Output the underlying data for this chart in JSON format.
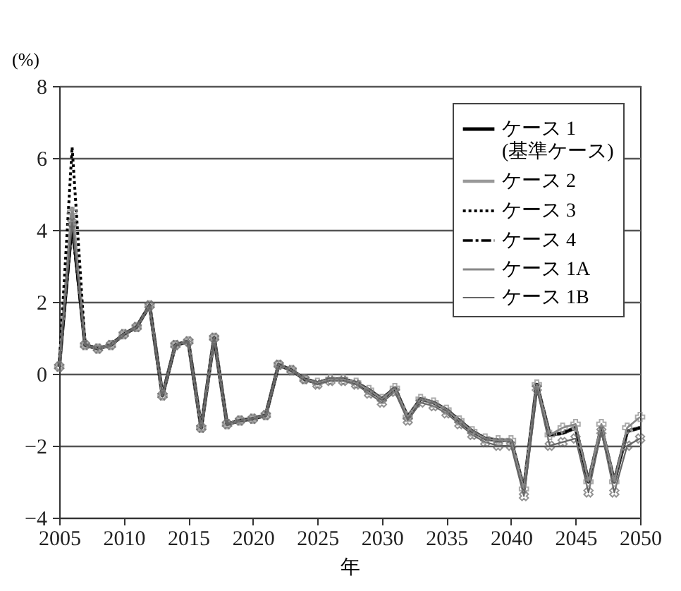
{
  "chart_data": {
    "type": "line",
    "xlabel": "年",
    "ylabel": "(%)",
    "x": [
      2005,
      2006,
      2007,
      2008,
      2009,
      2010,
      2011,
      2012,
      2013,
      2014,
      2015,
      2016,
      2017,
      2018,
      2019,
      2020,
      2021,
      2022,
      2023,
      2024,
      2025,
      2026,
      2027,
      2028,
      2029,
      2030,
      2031,
      2032,
      2033,
      2034,
      2035,
      2036,
      2037,
      2038,
      2039,
      2040,
      2041,
      2042,
      2043,
      2044,
      2045,
      2046,
      2047,
      2048,
      2049,
      2050
    ],
    "xlim": [
      2005,
      2050
    ],
    "xticks": [
      2005,
      2010,
      2015,
      2020,
      2025,
      2030,
      2035,
      2040,
      2045,
      2050
    ],
    "ylim": [
      -4,
      8
    ],
    "yticks": [
      -4,
      -2,
      0,
      2,
      4,
      6,
      8
    ],
    "grid": "y",
    "legend": "top right",
    "series": [
      {
        "name": "ケース 1\n(基準ケース)",
        "color": "#000000",
        "line_style": "solid",
        "values": [
          0.2,
          4.3,
          0.8,
          0.7,
          0.8,
          1.1,
          1.3,
          1.9,
          -0.6,
          0.8,
          0.9,
          -1.5,
          1.0,
          -1.4,
          -1.3,
          -1.25,
          -1.15,
          0.25,
          0.1,
          -0.15,
          -0.25,
          -0.15,
          -0.15,
          -0.25,
          -0.45,
          -0.7,
          -0.4,
          -1.2,
          -0.7,
          -0.8,
          -1.0,
          -1.3,
          -1.6,
          -1.8,
          -1.85,
          -1.85,
          -3.2,
          -0.3,
          -1.7,
          -1.65,
          -1.5,
          -3.0,
          -1.5,
          -3.0,
          -1.6,
          -1.5
        ]
      },
      {
        "name": "ケース 2",
        "color": "#999999",
        "line_style": "solid",
        "values": [
          0.2,
          4.6,
          0.8,
          0.7,
          0.8,
          1.1,
          1.3,
          1.9,
          -0.6,
          0.8,
          0.9,
          -1.5,
          1.0,
          -1.4,
          -1.3,
          -1.25,
          -1.15,
          0.25,
          0.1,
          -0.15,
          -0.25,
          -0.15,
          -0.15,
          -0.25,
          -0.45,
          -0.7,
          -0.4,
          -1.2,
          -0.7,
          -0.8,
          -1.0,
          -1.3,
          -1.6,
          -1.8,
          -1.85,
          -1.85,
          -3.2,
          -0.3,
          -1.7,
          -1.65,
          -1.5,
          -3.0,
          -1.5,
          -3.0,
          -1.6,
          -1.5
        ]
      },
      {
        "name": "ケース 3",
        "color": "#000000",
        "line_style": "dotted",
        "values": [
          0.2,
          6.3,
          0.8,
          0.7,
          0.8,
          1.1,
          1.3,
          1.9,
          -0.6,
          0.8,
          0.9,
          -1.5,
          1.0,
          -1.4,
          -1.3,
          -1.25,
          -1.15,
          0.25,
          0.1,
          -0.15,
          -0.25,
          -0.15,
          -0.15,
          -0.25,
          -0.45,
          -0.7,
          -0.4,
          -1.2,
          -0.7,
          -0.8,
          -1.0,
          -1.3,
          -1.6,
          -1.8,
          -1.85,
          -1.85,
          -3.2,
          -0.3,
          -1.7,
          -1.65,
          -1.5,
          -3.0,
          -1.5,
          -3.0,
          -1.6,
          -1.5
        ]
      },
      {
        "name": "ケース 4",
        "color": "#000000",
        "line_style": "dashed",
        "values": [
          0.2,
          4.0,
          0.8,
          0.7,
          0.8,
          1.1,
          1.3,
          1.9,
          -0.6,
          0.8,
          0.9,
          -1.5,
          1.0,
          -1.4,
          -1.3,
          -1.25,
          -1.15,
          0.25,
          0.1,
          -0.15,
          -0.25,
          -0.15,
          -0.15,
          -0.25,
          -0.45,
          -0.7,
          -0.4,
          -1.2,
          -0.7,
          -0.8,
          -1.0,
          -1.3,
          -1.6,
          -1.8,
          -1.85,
          -1.85,
          -3.2,
          -0.3,
          -1.7,
          -1.65,
          -1.5,
          -3.0,
          -1.5,
          -3.0,
          -1.6,
          -1.5
        ]
      },
      {
        "name": "ケース 1A",
        "color": "#888888",
        "line_style": "solid",
        "marker": "cross",
        "values": [
          0.2,
          4.5,
          0.8,
          0.7,
          0.8,
          1.1,
          1.3,
          1.9,
          -0.6,
          0.8,
          0.9,
          -1.5,
          1.0,
          -1.4,
          -1.3,
          -1.25,
          -1.15,
          0.25,
          0.1,
          -0.15,
          -0.25,
          -0.15,
          -0.15,
          -0.25,
          -0.45,
          -0.7,
          -0.4,
          -1.2,
          -0.7,
          -0.8,
          -1.0,
          -1.3,
          -1.6,
          -1.8,
          -1.85,
          -1.85,
          -3.2,
          -0.3,
          -1.7,
          -1.5,
          -1.4,
          -3.0,
          -1.4,
          -3.0,
          -1.5,
          -1.2
        ]
      },
      {
        "name": "ケース 1B",
        "color": "#666666",
        "line_style": "solid",
        "marker": "cross",
        "values": [
          0.2,
          4.2,
          0.8,
          0.7,
          0.8,
          1.1,
          1.3,
          1.9,
          -0.6,
          0.8,
          0.9,
          -1.5,
          1.0,
          -1.4,
          -1.3,
          -1.25,
          -1.15,
          0.25,
          0.1,
          -0.15,
          -0.3,
          -0.2,
          -0.2,
          -0.3,
          -0.55,
          -0.8,
          -0.5,
          -1.3,
          -0.8,
          -0.9,
          -1.1,
          -1.4,
          -1.7,
          -1.9,
          -2.0,
          -2.0,
          -3.4,
          -0.4,
          -2.0,
          -1.9,
          -1.8,
          -3.3,
          -1.6,
          -3.3,
          -2.0,
          -1.8
        ]
      }
    ]
  }
}
